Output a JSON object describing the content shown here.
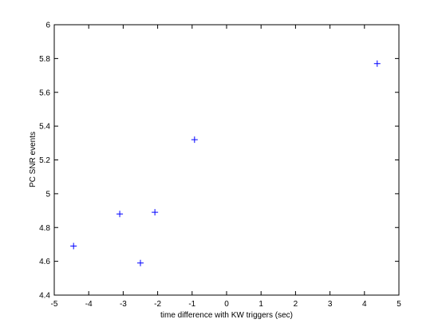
{
  "chart_data": {
    "type": "scatter",
    "xlabel": "time difference with KW triggers (sec)",
    "ylabel": "PC SNR events",
    "series": [
      {
        "color": "#0000ff",
        "x": [
          -4.44,
          -3.1,
          -2.5,
          -2.08,
          -0.93,
          4.37
        ],
        "values": [
          4.69,
          4.88,
          4.59,
          4.89,
          5.32,
          5.77
        ]
      }
    ],
    "xlim": [
      -5,
      5
    ],
    "xticks": [
      -5,
      -4,
      -3,
      -2,
      -1,
      0,
      1,
      2,
      3,
      4,
      5
    ],
    "ylim": [
      4.4,
      6
    ],
    "yticks": [
      4.4,
      4.6,
      4.8,
      5,
      5.2,
      5.4,
      5.6,
      5.8,
      6
    ],
    "grid": false
  }
}
